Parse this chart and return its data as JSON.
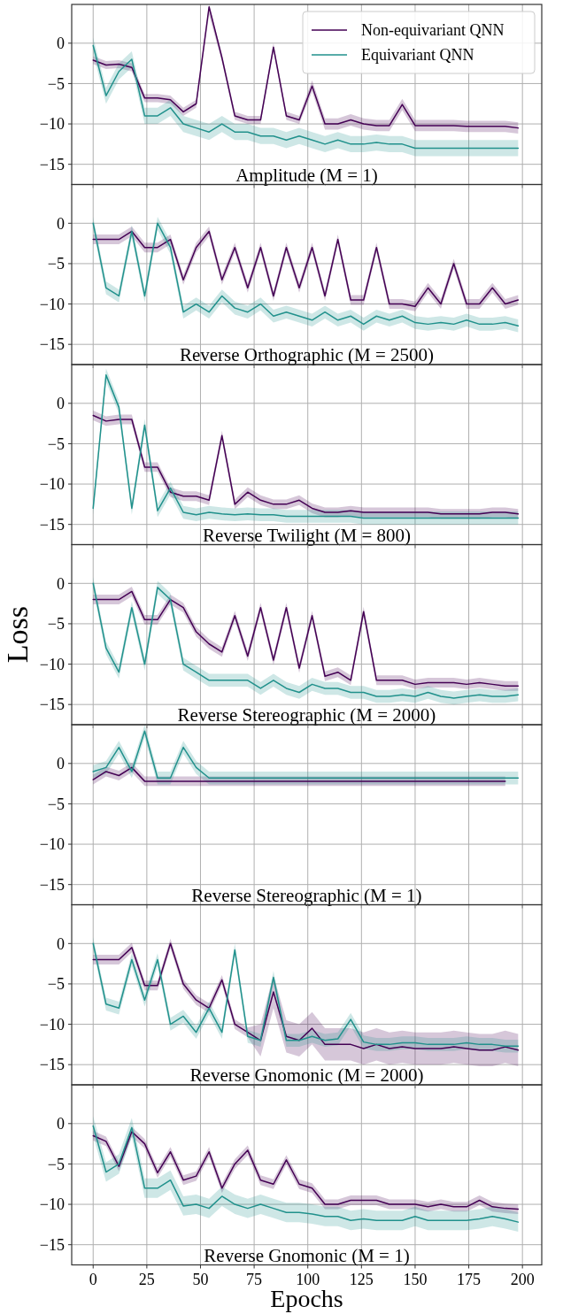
{
  "chart_data": [
    {
      "type": "line",
      "title": "Amplitude (M = 1)",
      "x": [
        0,
        6,
        12,
        18,
        24,
        30,
        36,
        42,
        48,
        54,
        60,
        66,
        72,
        78,
        84,
        90,
        96,
        102,
        108,
        114,
        120,
        126,
        132,
        138,
        144,
        150,
        156,
        162,
        168,
        174,
        180,
        186,
        192,
        198
      ],
      "xlim": [
        -10,
        209
      ],
      "xticks": [
        0,
        25,
        50,
        75,
        100,
        125,
        150,
        175,
        200
      ],
      "ylim": [
        -17.5,
        4.8
      ],
      "yticks": [
        -15,
        -10,
        -5,
        0
      ],
      "grid": true,
      "tick_labels": "y",
      "legend": "top right",
      "series": [
        {
          "name": "Non-equivariant QNN",
          "color": "#440154",
          "values": [
            -2.1,
            -2.7,
            -2.6,
            -3,
            -6.8,
            -6.8,
            -7,
            -8.5,
            -7.5,
            4.5,
            -1.8,
            -9,
            -9.5,
            -9.5,
            -0.5,
            -9,
            -9.5,
            -5.3,
            -10,
            -10,
            -9.5,
            -10,
            -10.2,
            -10.2,
            -7.6,
            -10.2,
            -10.2,
            -10.2,
            -10.2,
            -10.3,
            -10.3,
            -10.3,
            -10.3,
            -10.5
          ],
          "lower": [
            -2.6,
            -3.2,
            -3.1,
            -3.5,
            -7.3,
            -7.3,
            -7.5,
            -9,
            -8,
            3.5,
            -2.3,
            -9.5,
            -10,
            -10,
            -1,
            -9.5,
            -10,
            -6,
            -10.7,
            -10.7,
            -10.2,
            -10.7,
            -10.9,
            -10.9,
            -8.3,
            -10.9,
            -10.9,
            -10.9,
            -10.9,
            -11,
            -11,
            -11,
            -11,
            -11.2
          ],
          "upper": [
            -1.6,
            -2.2,
            -2.1,
            -2.5,
            -6.3,
            -6.3,
            -6.5,
            -8,
            -7,
            4.8,
            -1.3,
            -8.5,
            -9,
            -9,
            0,
            -8.5,
            -9,
            -4.6,
            -9.3,
            -9.3,
            -8.8,
            -9.3,
            -9.5,
            -9.5,
            -6.9,
            -9.5,
            -9.5,
            -9.5,
            -9.5,
            -9.6,
            -9.6,
            -9.6,
            -9.6,
            -9.8
          ]
        },
        {
          "name": "Equivariant QNN",
          "color": "#21918c",
          "values": [
            -0.3,
            -6.5,
            -3.5,
            -2,
            -9,
            -9,
            -8,
            -10,
            -10.5,
            -11,
            -10,
            -11,
            -11,
            -11.5,
            -11.5,
            -12,
            -11.5,
            -12,
            -12.5,
            -12,
            -12.5,
            -12.5,
            -12.3,
            -12.5,
            -12.5,
            -13,
            -13,
            -13,
            -13,
            -13,
            -13,
            -13,
            -13,
            -13
          ],
          "lower": [
            -1.3,
            -7.5,
            -4.5,
            -3,
            -10,
            -10,
            -9,
            -11,
            -11.5,
            -12,
            -11,
            -12,
            -12,
            -12.5,
            -12.5,
            -13,
            -12.5,
            -13,
            -13.5,
            -13,
            -13.5,
            -13.5,
            -13.3,
            -13.5,
            -13.5,
            -14,
            -14,
            -14,
            -14,
            -14,
            -14,
            -14,
            -14,
            -14
          ],
          "upper": [
            0.7,
            -5.5,
            -2.5,
            -1,
            -8,
            -8,
            -7,
            -9,
            -9.5,
            -10,
            -9,
            -10,
            -10,
            -10.5,
            -10.5,
            -11,
            -10.5,
            -11,
            -11.5,
            -11,
            -11.5,
            -11.5,
            -11.3,
            -11.5,
            -11.5,
            -12,
            -12,
            -12,
            -12,
            -12,
            -12,
            -12,
            -12,
            -12
          ]
        }
      ]
    },
    {
      "type": "line",
      "title": "Reverse Orthographic (M = 2500)",
      "x": [
        0,
        6,
        12,
        18,
        24,
        30,
        36,
        42,
        48,
        54,
        60,
        66,
        72,
        78,
        84,
        90,
        96,
        102,
        108,
        114,
        120,
        126,
        132,
        138,
        144,
        150,
        156,
        162,
        168,
        174,
        180,
        186,
        192,
        198
      ],
      "xlim": [
        -10,
        209
      ],
      "xticks": [
        0,
        25,
        50,
        75,
        100,
        125,
        150,
        175,
        200
      ],
      "ylim": [
        -17.5,
        4.8
      ],
      "yticks": [
        -15,
        -10,
        -5,
        0
      ],
      "grid": true,
      "tick_labels": "y",
      "series": [
        {
          "color": "#440154",
          "values": [
            -2,
            -2,
            -2,
            -1,
            -3,
            -3,
            -2,
            -7,
            -3,
            -1,
            -7,
            -3,
            -8,
            -3,
            -9,
            -3,
            -8,
            -3,
            -9,
            -2,
            -9.5,
            -9.5,
            -3,
            -10,
            -10,
            -10.3,
            -8,
            -10,
            -5,
            -10,
            -10,
            -8,
            -10,
            -9.5
          ],
          "lower": [
            -2.6,
            -2.6,
            -2.6,
            -1.6,
            -3.6,
            -3.6,
            -2.6,
            -7.6,
            -3.6,
            -1.6,
            -7.6,
            -3.6,
            -8.6,
            -3.6,
            -9.6,
            -3.6,
            -8.6,
            -3.6,
            -9.6,
            -2.6,
            -10.1,
            -10.1,
            -3.6,
            -10.6,
            -10.6,
            -10.9,
            -8.6,
            -10.6,
            -5.6,
            -10.6,
            -10.6,
            -8.6,
            -10.6,
            -10.1
          ],
          "upper": [
            -1.4,
            -1.4,
            -1.4,
            -0.4,
            -2.4,
            -2.4,
            -1.4,
            -6.4,
            -2.4,
            -0.4,
            -6.4,
            -2.4,
            -7.4,
            -2.4,
            -8.4,
            -2.4,
            -7.4,
            -2.4,
            -8.4,
            -1.4,
            -8.9,
            -8.9,
            -2.4,
            -9.4,
            -9.4,
            -9.7,
            -7.4,
            -9.4,
            -4.4,
            -9.4,
            -9.4,
            -7.4,
            -9.4,
            -8.9
          ]
        },
        {
          "color": "#21918c",
          "values": [
            0,
            -8,
            -9,
            -1,
            -9,
            0,
            -3,
            -11,
            -10,
            -11,
            -9,
            -10.5,
            -11,
            -10,
            -11.5,
            -11,
            -11.5,
            -12,
            -11,
            -12,
            -11.5,
            -12.5,
            -11.5,
            -12,
            -11.5,
            -12.3,
            -12.5,
            -12.3,
            -12.5,
            -12,
            -12.5,
            -12.5,
            -12.3,
            -12.7
          ],
          "lower": [
            -0.8,
            -8.8,
            -9.8,
            -1.8,
            -9.8,
            -0.8,
            -3.8,
            -11.8,
            -10.8,
            -11.8,
            -9.8,
            -11.3,
            -11.8,
            -10.8,
            -12.3,
            -11.8,
            -12.3,
            -12.8,
            -11.8,
            -12.8,
            -12.3,
            -13.3,
            -12.3,
            -12.8,
            -12.3,
            -13.1,
            -13.3,
            -13.1,
            -13.3,
            -12.8,
            -13.3,
            -13.3,
            -13.1,
            -13.5
          ],
          "upper": [
            0.8,
            -7.2,
            -8.2,
            -0.2,
            -8.2,
            0.8,
            -2.2,
            -10.2,
            -9.2,
            -10.2,
            -8.2,
            -9.7,
            -10.2,
            -9.2,
            -10.7,
            -10.2,
            -10.7,
            -11.2,
            -10.2,
            -11.2,
            -10.7,
            -11.7,
            -10.7,
            -11.2,
            -10.7,
            -11.5,
            -11.7,
            -11.5,
            -11.7,
            -11.2,
            -11.7,
            -11.7,
            -11.5,
            -11.9
          ]
        }
      ]
    },
    {
      "type": "line",
      "title": "Reverse Twilight (M = 800)",
      "x": [
        0,
        6,
        12,
        18,
        24,
        30,
        36,
        42,
        48,
        54,
        60,
        66,
        72,
        78,
        84,
        90,
        96,
        102,
        108,
        114,
        120,
        126,
        132,
        138,
        144,
        150,
        156,
        162,
        168,
        174,
        180,
        186,
        192,
        198
      ],
      "xlim": [
        -10,
        209
      ],
      "xticks": [
        0,
        25,
        50,
        75,
        100,
        125,
        150,
        175,
        200
      ],
      "ylim": [
        -17.5,
        4.8
      ],
      "yticks": [
        -15,
        -10,
        -5,
        0
      ],
      "grid": true,
      "tick_labels": "y",
      "series": [
        {
          "color": "#440154",
          "values": [
            -1.5,
            -2.2,
            -2,
            -2,
            -7.9,
            -7.9,
            -11,
            -11.5,
            -11.5,
            -12,
            -4,
            -12.5,
            -11,
            -12,
            -12.5,
            -12.5,
            -12,
            -13,
            -13.5,
            -13.5,
            -13.3,
            -13.5,
            -13.5,
            -13.5,
            -13.5,
            -13.5,
            -13.5,
            -13.7,
            -13.7,
            -13.7,
            -13.7,
            -13.5,
            -13.5,
            -13.7
          ],
          "lower": [
            -2.1,
            -2.8,
            -2.6,
            -2.6,
            -8.5,
            -8.5,
            -11.6,
            -12.1,
            -12.1,
            -12.6,
            -4.6,
            -13.1,
            -11.6,
            -12.6,
            -13.1,
            -13.1,
            -12.6,
            -13.6,
            -14.1,
            -14.1,
            -13.9,
            -14.1,
            -14.1,
            -14.1,
            -14.1,
            -14.1,
            -14.1,
            -14.3,
            -14.3,
            -14.3,
            -14.3,
            -14.1,
            -14.1,
            -14.3
          ],
          "upper": [
            -0.9,
            -1.6,
            -1.4,
            -1.4,
            -7.3,
            -7.3,
            -10.4,
            -10.9,
            -10.9,
            -11.4,
            -3.4,
            -11.9,
            -10.4,
            -11.4,
            -11.9,
            -11.9,
            -11.4,
            -12.4,
            -12.9,
            -12.9,
            -12.7,
            -12.9,
            -12.9,
            -12.9,
            -12.9,
            -12.9,
            -12.9,
            -13.1,
            -13.1,
            -13.1,
            -13.1,
            -12.9,
            -12.9,
            -13.1
          ]
        },
        {
          "color": "#21918c",
          "values": [
            -13,
            3.5,
            -0.5,
            -13,
            -2.7,
            -13.3,
            -10.5,
            -13.5,
            -13.8,
            -13.5,
            -13.7,
            -13.8,
            -13.7,
            -13.8,
            -13.8,
            -14,
            -14,
            -14,
            -14,
            -14,
            -14,
            -14.2,
            -14.2,
            -14.2,
            -14.2,
            -14.2,
            -14.2,
            -14.2,
            -14.2,
            -14.2,
            -14.2,
            -14.2,
            -14.2,
            -14.2
          ],
          "lower": [
            -13.8,
            2.7,
            -1.3,
            -13.8,
            -3.5,
            -14.1,
            -11.3,
            -14.3,
            -14.6,
            -14.3,
            -14.5,
            -14.6,
            -14.5,
            -14.6,
            -14.6,
            -14.8,
            -14.8,
            -14.8,
            -14.8,
            -14.8,
            -14.8,
            -15,
            -15,
            -15,
            -15,
            -15,
            -15,
            -15,
            -15,
            -15,
            -15,
            -15,
            -15,
            -15
          ],
          "upper": [
            -12.2,
            4.3,
            0.3,
            -12.2,
            -1.9,
            -12.5,
            -9.7,
            -12.7,
            -13,
            -12.7,
            -12.9,
            -13,
            -12.9,
            -13,
            -13,
            -13.2,
            -13.2,
            -13.2,
            -13.2,
            -13.2,
            -13.2,
            -13.4,
            -13.4,
            -13.4,
            -13.4,
            -13.4,
            -13.4,
            -13.4,
            -13.4,
            -13.4,
            -13.4,
            -13.4,
            -13.4,
            -13.4
          ]
        }
      ]
    },
    {
      "type": "line",
      "title": "Reverse Stereographic (M = 2000)",
      "ylabel": "Loss",
      "x": [
        0,
        6,
        12,
        18,
        24,
        30,
        36,
        42,
        48,
        54,
        60,
        66,
        72,
        78,
        84,
        90,
        96,
        102,
        108,
        114,
        120,
        126,
        132,
        138,
        144,
        150,
        156,
        162,
        168,
        174,
        180,
        186,
        192,
        198
      ],
      "xlim": [
        -10,
        209
      ],
      "xticks": [
        0,
        25,
        50,
        75,
        100,
        125,
        150,
        175,
        200
      ],
      "ylim": [
        -17.5,
        4.8
      ],
      "yticks": [
        -15,
        -10,
        -5,
        0
      ],
      "grid": true,
      "tick_labels": "y",
      "series": [
        {
          "color": "#440154",
          "values": [
            -2,
            -2,
            -2,
            -1,
            -4.5,
            -4.5,
            -2,
            -3,
            -6,
            -7.5,
            -8.5,
            -4,
            -9,
            -3,
            -9.5,
            -3,
            -10.5,
            -4,
            -11.5,
            -11,
            -12,
            -3.5,
            -12,
            -12,
            -12,
            -12.5,
            -12.3,
            -12.3,
            -12.3,
            -12.5,
            -12.3,
            -12.5,
            -12.7,
            -12.7
          ],
          "lower": [
            -2.6,
            -2.6,
            -2.6,
            -1.6,
            -5.1,
            -5.1,
            -2.6,
            -3.6,
            -6.6,
            -8.1,
            -9.1,
            -4.6,
            -9.6,
            -3.6,
            -10.1,
            -3.6,
            -11.1,
            -4.6,
            -12.1,
            -11.6,
            -12.6,
            -4.1,
            -12.6,
            -12.6,
            -12.6,
            -13.1,
            -12.9,
            -12.9,
            -12.9,
            -13.1,
            -12.9,
            -13.1,
            -13.3,
            -13.3
          ],
          "upper": [
            -1.4,
            -1.4,
            -1.4,
            -0.4,
            -3.9,
            -3.9,
            -1.4,
            -2.4,
            -5.4,
            -6.9,
            -7.9,
            -3.4,
            -8.4,
            -2.4,
            -8.9,
            -2.4,
            -9.9,
            -3.4,
            -10.9,
            -10.4,
            -11.4,
            -2.9,
            -11.4,
            -11.4,
            -11.4,
            -11.9,
            -11.7,
            -11.7,
            -11.7,
            -11.9,
            -11.7,
            -11.9,
            -12.1,
            -12.1
          ]
        },
        {
          "color": "#21918c",
          "values": [
            0,
            -8,
            -11,
            -3,
            -10,
            -0.5,
            -2,
            -10,
            -11,
            -12,
            -12,
            -12,
            -12,
            -13,
            -12,
            -13,
            -13.5,
            -12.5,
            -13,
            -13,
            -13.5,
            -13.5,
            -14,
            -14,
            -13.8,
            -14,
            -13.5,
            -14,
            -14.2,
            -14,
            -13.8,
            -14,
            -14,
            -13.8
          ],
          "lower": [
            -0.8,
            -8.8,
            -11.8,
            -3.8,
            -10.8,
            -1.3,
            -2.8,
            -10.8,
            -11.8,
            -12.8,
            -12.8,
            -12.8,
            -12.8,
            -13.8,
            -12.8,
            -13.8,
            -14.3,
            -13.3,
            -13.8,
            -13.8,
            -14.3,
            -14.3,
            -14.8,
            -14.8,
            -14.6,
            -14.8,
            -14.3,
            -14.8,
            -15,
            -14.8,
            -14.6,
            -14.8,
            -14.8,
            -14.6
          ],
          "upper": [
            0.8,
            -7.2,
            -10.2,
            -2.2,
            -9.2,
            0.3,
            -1.2,
            -9.2,
            -10.2,
            -11.2,
            -11.2,
            -11.2,
            -11.2,
            -12.2,
            -11.2,
            -12.2,
            -12.7,
            -11.7,
            -12.2,
            -12.2,
            -12.7,
            -12.7,
            -13.2,
            -13.2,
            -13,
            -13.2,
            -12.7,
            -13.2,
            -13.4,
            -13.2,
            -13,
            -13.2,
            -13.2,
            -13
          ]
        }
      ]
    },
    {
      "type": "line",
      "title": "Reverse Stereographic (M = 1)",
      "x": [
        0,
        6,
        12,
        18,
        24,
        30,
        36,
        42,
        48,
        54,
        60,
        66,
        72,
        78,
        84,
        90,
        96,
        102,
        108,
        114,
        120,
        126,
        132,
        138,
        144,
        150,
        156,
        162,
        168,
        174,
        180,
        186,
        192,
        198
      ],
      "xlim": [
        -10,
        209
      ],
      "xticks": [
        0,
        25,
        50,
        75,
        100,
        125,
        150,
        175,
        200
      ],
      "ylim": [
        -17.5,
        4.8
      ],
      "yticks": [
        -15,
        -10,
        -5,
        0
      ],
      "grid": true,
      "tick_labels": "y",
      "series": [
        {
          "color": "#440154",
          "values": [
            -2,
            -1,
            -1.5,
            -0.5,
            -2.2,
            -2.2,
            -2.2,
            -2.2,
            -2.2,
            -2.2,
            -2.2,
            -2.2,
            -2.2,
            -2.2,
            -2.2,
            -2.2,
            -2.2,
            -2.2,
            -2.2,
            -2.2,
            -2.2,
            -2.2,
            -2.2,
            -2.2,
            -2.2,
            -2.2,
            -2.2,
            -2.2,
            -2.2,
            -2.2,
            -2.2,
            -2.2,
            -2.2,
            null
          ],
          "lower": [
            -2.6,
            -1.6,
            -2.1,
            -1.1,
            -2.8,
            -2.8,
            -2.8,
            -2.8,
            -2.8,
            -2.8,
            -2.8,
            -2.8,
            -2.8,
            -2.8,
            -2.8,
            -2.8,
            -2.8,
            -2.8,
            -2.8,
            -2.8,
            -2.8,
            -2.8,
            -2.8,
            -2.8,
            -2.8,
            -2.8,
            -2.8,
            -2.8,
            -2.8,
            -2.8,
            -2.8,
            -2.8,
            -2.8,
            null
          ],
          "upper": [
            -1.4,
            -0.4,
            -0.9,
            0.1,
            -1.6,
            -1.6,
            -1.6,
            -1.6,
            -1.6,
            -1.6,
            -1.6,
            -1.6,
            -1.6,
            -1.6,
            -1.6,
            -1.6,
            -1.6,
            -1.6,
            -1.6,
            -1.6,
            -1.6,
            -1.6,
            -1.6,
            -1.6,
            -1.6,
            -1.6,
            -1.6,
            -1.6,
            -1.6,
            -1.6,
            -1.6,
            -1.6,
            -1.6,
            null
          ]
        },
        {
          "color": "#21918c",
          "values": [
            -1,
            -0.5,
            2,
            -1,
            4,
            -1.8,
            -1.8,
            2,
            -0.5,
            -1.8,
            -1.8,
            -1.8,
            -1.8,
            -1.8,
            -1.8,
            -1.8,
            -1.8,
            -1.8,
            -1.8,
            -1.8,
            -1.8,
            -1.8,
            -1.8,
            -1.8,
            -1.8,
            -1.8,
            -1.8,
            -1.8,
            -1.8,
            -1.8,
            -1.8,
            -1.8,
            -1.8,
            -1.8
          ],
          "lower": [
            -1.8,
            -1.3,
            1.2,
            -1.8,
            3.2,
            -2.6,
            -2.6,
            1.2,
            -1.3,
            -2.6,
            -2.6,
            -2.6,
            -2.6,
            -2.6,
            -2.6,
            -2.6,
            -2.6,
            -2.6,
            -2.6,
            -2.6,
            -2.6,
            -2.6,
            -2.6,
            -2.6,
            -2.6,
            -2.6,
            -2.6,
            -2.6,
            -2.6,
            -2.6,
            -2.6,
            -2.6,
            -2.6,
            -2.6
          ],
          "upper": [
            -0.2,
            0.3,
            2.8,
            -0.2,
            4.8,
            -1,
            -1,
            2.8,
            0.3,
            -1,
            -1,
            -1,
            -1,
            -1,
            -1,
            -1,
            -1,
            -1,
            -1,
            -1,
            -1,
            -1,
            -1,
            -1,
            -1,
            -1,
            -1,
            -1,
            -1,
            -1,
            -1,
            -1,
            -1,
            -1
          ]
        }
      ]
    },
    {
      "type": "line",
      "title": "Reverse Gnomonic (M = 2000)",
      "x": [
        0,
        6,
        12,
        18,
        24,
        30,
        36,
        42,
        48,
        54,
        60,
        66,
        72,
        78,
        84,
        90,
        96,
        102,
        108,
        114,
        120,
        126,
        132,
        138,
        144,
        150,
        156,
        162,
        168,
        174,
        180,
        186,
        192,
        198
      ],
      "xlim": [
        -10,
        209
      ],
      "xticks": [
        0,
        25,
        50,
        75,
        100,
        125,
        150,
        175,
        200
      ],
      "ylim": [
        -17.5,
        4.8
      ],
      "yticks": [
        -15,
        -10,
        -5,
        0
      ],
      "grid": true,
      "tick_labels": "y",
      "series": [
        {
          "color": "#440154",
          "values": [
            -2,
            -2,
            -2,
            -0.5,
            -5.2,
            -5.2,
            0,
            -5,
            -7,
            -8,
            -4.5,
            -10,
            -11,
            -12,
            -6,
            -11.5,
            -12,
            -10.5,
            -12.5,
            -12.5,
            -12.5,
            -13,
            -12.5,
            -13,
            -12.8,
            -13,
            -13,
            -13,
            -12.8,
            -13,
            -13.2,
            -13.2,
            -12.8,
            -13.2
          ],
          "lower": [
            -2.6,
            -2.6,
            -2.6,
            -1.1,
            -5.8,
            -5.8,
            -0.6,
            -5.6,
            -7.6,
            -8.6,
            -5.1,
            -10.6,
            -11.6,
            -14,
            -8,
            -13.5,
            -14,
            -12.5,
            -14.5,
            -14.5,
            -14.5,
            -15,
            -14.5,
            -15,
            -14.8,
            -15,
            -15,
            -15,
            -14.8,
            -15,
            -15.2,
            -15.2,
            -14.8,
            -15.2
          ],
          "upper": [
            -1.4,
            -1.4,
            -1.4,
            0.1,
            -4.6,
            -4.6,
            0.6,
            -4.4,
            -6.4,
            -7.4,
            -3.9,
            -9.4,
            -10.4,
            -10,
            -4,
            -9.5,
            -10,
            -8.5,
            -10.5,
            -10.5,
            -10.5,
            -11,
            -10.5,
            -11,
            -10.8,
            -11,
            -11,
            -11,
            -10.8,
            -11,
            -11.2,
            -11.2,
            -10.8,
            -11.2
          ]
        },
        {
          "color": "#21918c",
          "values": [
            0,
            -7.5,
            -8,
            -2,
            -7,
            -2,
            -10,
            -9,
            -11,
            -8,
            -11,
            -0.8,
            -11.5,
            -12,
            -4.2,
            -12,
            -12,
            -11.5,
            -12,
            -11.8,
            -9.4,
            -12.2,
            -12.5,
            -12.5,
            -12.3,
            -12.3,
            -12.5,
            -12.5,
            -12.5,
            -12.3,
            -12.5,
            -12.5,
            -12.7,
            -12.7
          ],
          "lower": [
            -0.8,
            -8.3,
            -8.8,
            -2.8,
            -7.8,
            -2.8,
            -10.8,
            -9.8,
            -11.8,
            -8.8,
            -11.8,
            -1.6,
            -12.3,
            -12.8,
            -5,
            -12.8,
            -12.8,
            -12.3,
            -12.8,
            -12.6,
            -10.2,
            -13,
            -13.3,
            -13.3,
            -13.1,
            -13.1,
            -13.3,
            -13.3,
            -13.3,
            -13.1,
            -13.3,
            -13.3,
            -13.5,
            -13.5
          ],
          "upper": [
            0.8,
            -6.7,
            -7.2,
            -1.2,
            -6.2,
            -1.2,
            -9.2,
            -8.2,
            -10.2,
            -7.2,
            -10.2,
            0,
            -10.7,
            -11.2,
            -3.4,
            -11.2,
            -11.2,
            -10.7,
            -11.2,
            -11,
            -8.6,
            -11.4,
            -11.7,
            -11.7,
            -11.5,
            -11.5,
            -11.7,
            -11.7,
            -11.7,
            -11.5,
            -11.7,
            -11.7,
            -11.9,
            -11.9
          ]
        }
      ]
    },
    {
      "type": "line",
      "title": "Reverse Gnomonic (M = 1)",
      "xlabel": "Epochs",
      "x": [
        0,
        6,
        12,
        18,
        24,
        30,
        36,
        42,
        48,
        54,
        60,
        66,
        72,
        78,
        84,
        90,
        96,
        102,
        108,
        114,
        120,
        126,
        132,
        138,
        144,
        150,
        156,
        162,
        168,
        174,
        180,
        186,
        192,
        198
      ],
      "xlim": [
        -10,
        209
      ],
      "xticks": [
        0,
        25,
        50,
        75,
        100,
        125,
        150,
        175,
        200
      ],
      "ylim": [
        -17.5,
        4.8
      ],
      "yticks": [
        -15,
        -10,
        -5,
        0
      ],
      "grid": true,
      "series": [
        {
          "color": "#440154",
          "values": [
            -1.5,
            -2.2,
            -5.3,
            -1,
            -2.5,
            -6.1,
            -3.5,
            -7,
            -6.5,
            -3.5,
            -8,
            -5,
            -3.3,
            -7,
            -7.5,
            -4.5,
            -7.5,
            -8,
            -10,
            -10,
            -9.5,
            -9.5,
            -9.5,
            -10,
            -10,
            -10,
            -10.3,
            -10,
            -10.3,
            -10.3,
            -9.5,
            -10.3,
            -10.5,
            -10.6
          ],
          "lower": [
            -2.1,
            -2.8,
            -5.9,
            -1.6,
            -3.1,
            -6.7,
            -4.1,
            -7.6,
            -7.1,
            -4.1,
            -8.6,
            -5.6,
            -3.9,
            -7.6,
            -8.1,
            -5.1,
            -8.1,
            -8.6,
            -10.6,
            -10.6,
            -10.1,
            -10.1,
            -10.1,
            -10.6,
            -10.6,
            -10.6,
            -10.9,
            -10.6,
            -10.9,
            -10.9,
            -10.1,
            -10.9,
            -11.1,
            -11.2
          ],
          "upper": [
            -0.9,
            -1.6,
            -4.7,
            -0.4,
            -1.9,
            -5.5,
            -2.9,
            -6.4,
            -5.9,
            -2.9,
            -7.4,
            -4.4,
            -2.7,
            -6.4,
            -6.9,
            -3.9,
            -6.9,
            -7.4,
            -9.4,
            -9.4,
            -8.9,
            -8.9,
            -8.9,
            -9.4,
            -9.4,
            -9.4,
            -9.7,
            -9.4,
            -9.7,
            -9.7,
            -8.9,
            -9.7,
            -9.9,
            -10
          ]
        },
        {
          "color": "#21918c",
          "values": [
            -0.3,
            -6,
            -5,
            -0.5,
            -8,
            -8,
            -7,
            -10.2,
            -10,
            -10.5,
            -9,
            -10,
            -10.5,
            -10,
            -10.5,
            -11,
            -11,
            -11.2,
            -11.5,
            -11.5,
            -12,
            -11.8,
            -12,
            -12,
            -12,
            -11.5,
            -12,
            -12,
            -12,
            -12,
            -11.8,
            -11.5,
            -11.8,
            -12.2
          ],
          "lower": [
            -1.5,
            -7.2,
            -6.2,
            -1.7,
            -9.2,
            -9.2,
            -8.2,
            -11.4,
            -11.2,
            -11.7,
            -10.2,
            -11.2,
            -11.7,
            -11.2,
            -11.7,
            -12.2,
            -12.2,
            -12.4,
            -12.7,
            -12.7,
            -13.2,
            -13,
            -13.2,
            -13.2,
            -13.2,
            -12.7,
            -13.2,
            -13.2,
            -13.2,
            -13.2,
            -13,
            -12.7,
            -13,
            -13.4
          ],
          "upper": [
            0.9,
            -4.8,
            -3.8,
            0.7,
            -6.8,
            -6.8,
            -5.8,
            -9,
            -8.8,
            -9.3,
            -7.8,
            -8.8,
            -9.3,
            -8.8,
            -9.3,
            -9.8,
            -9.8,
            -10,
            -10.3,
            -10.3,
            -10.8,
            -10.6,
            -10.8,
            -10.8,
            -10.8,
            -10.3,
            -10.8,
            -10.8,
            -10.8,
            -10.8,
            -10.6,
            -10.3,
            -10.6,
            -11
          ]
        }
      ]
    }
  ]
}
